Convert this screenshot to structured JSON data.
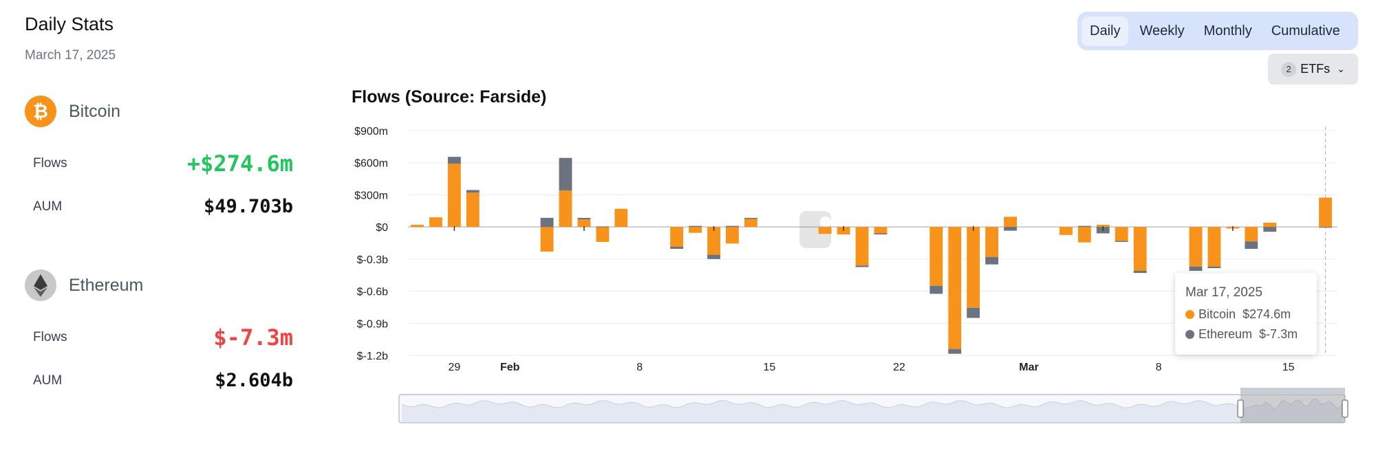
{
  "header": {
    "title": "Daily Stats",
    "date": "March 17, 2025"
  },
  "assets": {
    "bitcoin": {
      "name": "Bitcoin",
      "flows_label": "Flows",
      "flows_value": "+$274.6m",
      "aum_label": "AUM",
      "aum_value": "$49.703b"
    },
    "ethereum": {
      "name": "Ethereum",
      "flows_label": "Flows",
      "flows_value": "$-7.3m",
      "aum_label": "AUM",
      "aum_value": "$2.604b"
    }
  },
  "tabs": [
    {
      "label": "Daily",
      "active": true
    },
    {
      "label": "Weekly",
      "active": false
    },
    {
      "label": "Monthly",
      "active": false
    },
    {
      "label": "Cumulative",
      "active": false
    }
  ],
  "etf_selector": {
    "count": "2",
    "label": "ETFs"
  },
  "colors": {
    "bitcoin": "#f7931a",
    "ethereum": "#6b7280",
    "positive": "#22c55e",
    "negative": "#ef4444"
  },
  "tooltip": {
    "date": "Mar 17, 2025",
    "rows": [
      {
        "name": "Bitcoin",
        "value": "$274.6m"
      },
      {
        "name": "Ethereum",
        "value": "$-7.3m"
      }
    ]
  },
  "chart_data": {
    "type": "bar",
    "title": "Flows (Source: Farside)",
    "y_tick_labels": [
      "$900m",
      "$600m",
      "$300m",
      "$0",
      "$-0.3b",
      "$-0.6b",
      "$-0.9b",
      "$-1.2b"
    ],
    "y_ticks": [
      900,
      600,
      300,
      0,
      -300,
      -600,
      -900,
      -1200
    ],
    "ylim": [
      -1200,
      900
    ],
    "x_range": [
      "2025-01-27",
      "2025-03-17"
    ],
    "x_ticks": [
      {
        "date": "2025-01-29",
        "label": "29",
        "bold": false
      },
      {
        "date": "2025-02-01",
        "label": "Feb",
        "bold": true
      },
      {
        "date": "2025-02-08",
        "label": "8",
        "bold": false
      },
      {
        "date": "2025-02-15",
        "label": "15",
        "bold": false
      },
      {
        "date": "2025-02-22",
        "label": "22",
        "bold": false
      },
      {
        "date": "2025-03-01",
        "label": "Mar",
        "bold": true
      },
      {
        "date": "2025-03-08",
        "label": "8",
        "bold": false
      },
      {
        "date": "2025-03-15",
        "label": "15",
        "bold": false
      }
    ],
    "stacked": true,
    "series": [
      {
        "name": "Bitcoin",
        "points": [
          [
            "2025-01-27",
            20
          ],
          [
            "2025-01-28",
            90
          ],
          [
            "2025-01-29",
            590
          ],
          [
            "2025-01-30",
            320
          ],
          [
            "2025-02-03",
            -230
          ],
          [
            "2025-02-04",
            340
          ],
          [
            "2025-02-05",
            70
          ],
          [
            "2025-02-06",
            -140
          ],
          [
            "2025-02-07",
            170
          ],
          [
            "2025-02-10",
            -185
          ],
          [
            "2025-02-11",
            -55
          ],
          [
            "2025-02-12",
            -260
          ],
          [
            "2025-02-13",
            -155
          ],
          [
            "2025-02-14",
            75
          ],
          [
            "2025-02-18",
            -65
          ],
          [
            "2025-02-19",
            -70
          ],
          [
            "2025-02-20",
            -360
          ],
          [
            "2025-02-21",
            -60
          ],
          [
            "2025-02-24",
            -550
          ],
          [
            "2025-02-25",
            -1140
          ],
          [
            "2025-02-26",
            -755
          ],
          [
            "2025-02-27",
            -280
          ],
          [
            "2025-02-28",
            95
          ],
          [
            "2025-03-03",
            -75
          ],
          [
            "2025-03-04",
            -145
          ],
          [
            "2025-03-05",
            20
          ],
          [
            "2025-03-06",
            -130
          ],
          [
            "2025-03-07",
            -410
          ],
          [
            "2025-03-10",
            -370
          ],
          [
            "2025-03-11",
            -370
          ],
          [
            "2025-03-12",
            -15
          ],
          [
            "2025-03-13",
            -135
          ],
          [
            "2025-03-14",
            40
          ],
          [
            "2025-03-17",
            274.6
          ]
        ]
      },
      {
        "name": "Ethereum",
        "points": [
          [
            "2025-01-27",
            0
          ],
          [
            "2025-01-28",
            0
          ],
          [
            "2025-01-29",
            65
          ],
          [
            "2025-01-30",
            25
          ],
          [
            "2025-02-03",
            85
          ],
          [
            "2025-02-04",
            305
          ],
          [
            "2025-02-05",
            15
          ],
          [
            "2025-02-06",
            5
          ],
          [
            "2025-02-07",
            0
          ],
          [
            "2025-02-10",
            -20
          ],
          [
            "2025-02-11",
            10
          ],
          [
            "2025-02-12",
            -40
          ],
          [
            "2025-02-13",
            10
          ],
          [
            "2025-02-14",
            10
          ],
          [
            "2025-02-18",
            0
          ],
          [
            "2025-02-19",
            0
          ],
          [
            "2025-02-20",
            -15
          ],
          [
            "2025-02-21",
            -10
          ],
          [
            "2025-02-24",
            -75
          ],
          [
            "2025-02-25",
            -45
          ],
          [
            "2025-02-26",
            -95
          ],
          [
            "2025-02-27",
            -70
          ],
          [
            "2025-02-28",
            -35
          ],
          [
            "2025-03-03",
            0
          ],
          [
            "2025-03-04",
            10
          ],
          [
            "2025-03-05",
            -60
          ],
          [
            "2025-03-06",
            -10
          ],
          [
            "2025-03-07",
            -20
          ],
          [
            "2025-03-10",
            -40
          ],
          [
            "2025-03-11",
            -15
          ],
          [
            "2025-03-12",
            0
          ],
          [
            "2025-03-13",
            -70
          ],
          [
            "2025-03-14",
            -45
          ],
          [
            "2025-03-17",
            -7.3
          ]
        ]
      }
    ]
  }
}
